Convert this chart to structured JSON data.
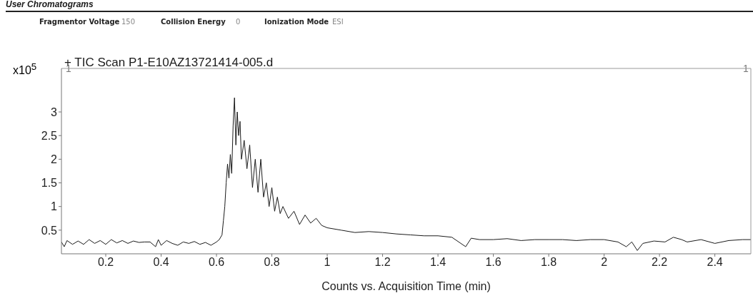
{
  "chart_data": {
    "type": "line",
    "title": "User Chromatograms",
    "xlabel": "Counts vs. Acquisition Time (min)",
    "ylabel": "x10$^{5}$",
    "annotations": [
      "Fragmentor Voltage",
      "150",
      "Collision Energy",
      "0",
      "Ionization Mode",
      "ESI",
      "1",
      "1"
    ],
    "x": [
      0.04,
      0.05,
      0.06,
      0.08,
      0.1,
      0.12,
      0.14,
      0.16,
      0.18,
      0.2,
      0.22,
      0.24,
      0.26,
      0.28,
      0.3,
      0.32,
      0.34,
      0.36,
      0.38,
      0.39,
      0.4,
      0.42,
      0.44,
      0.46,
      0.48,
      0.5,
      0.52,
      0.54,
      0.56,
      0.58,
      0.6,
      0.61,
      0.62,
      0.625,
      0.63,
      0.635,
      0.64,
      0.645,
      0.65,
      0.655,
      0.66,
      0.665,
      0.67,
      0.675,
      0.68,
      0.685,
      0.69,
      0.7,
      0.71,
      0.72,
      0.73,
      0.74,
      0.75,
      0.76,
      0.77,
      0.78,
      0.79,
      0.8,
      0.81,
      0.82,
      0.83,
      0.84,
      0.86,
      0.88,
      0.9,
      0.92,
      0.94,
      0.96,
      0.98,
      1.0,
      1.05,
      1.1,
      1.15,
      1.2,
      1.25,
      1.3,
      1.35,
      1.4,
      1.45,
      1.5,
      1.52,
      1.55,
      1.6,
      1.65,
      1.7,
      1.75,
      1.8,
      1.85,
      1.9,
      1.95,
      2.0,
      2.05,
      2.08,
      2.1,
      2.12,
      2.14,
      2.18,
      2.22,
      2.25,
      2.28,
      2.3,
      2.35,
      2.4,
      2.45,
      2.5,
      2.53
    ],
    "series": [
      {
        "name": "+ TIC Scan P1-E10AZ13721414-005.d",
        "color": "#1a1a1a",
        "values": [
          0.25,
          0.15,
          0.28,
          0.2,
          0.27,
          0.2,
          0.3,
          0.22,
          0.28,
          0.2,
          0.3,
          0.23,
          0.28,
          0.22,
          0.27,
          0.24,
          0.25,
          0.25,
          0.15,
          0.3,
          0.18,
          0.28,
          0.22,
          0.18,
          0.25,
          0.22,
          0.26,
          0.2,
          0.24,
          0.18,
          0.25,
          0.3,
          0.4,
          0.7,
          1.0,
          1.5,
          1.9,
          1.6,
          2.1,
          1.7,
          2.7,
          3.3,
          2.3,
          3.0,
          2.5,
          2.8,
          2.0,
          2.4,
          1.8,
          2.3,
          1.4,
          2.0,
          1.3,
          2.0,
          1.2,
          1.5,
          1.0,
          1.4,
          0.9,
          1.2,
          0.85,
          1.0,
          0.75,
          0.9,
          0.62,
          0.82,
          0.65,
          0.75,
          0.6,
          0.55,
          0.5,
          0.45,
          0.47,
          0.45,
          0.42,
          0.4,
          0.38,
          0.38,
          0.35,
          0.15,
          0.33,
          0.3,
          0.3,
          0.32,
          0.28,
          0.3,
          0.3,
          0.3,
          0.28,
          0.3,
          0.3,
          0.25,
          0.15,
          0.25,
          0.07,
          0.22,
          0.27,
          0.25,
          0.35,
          0.3,
          0.25,
          0.3,
          0.22,
          0.28,
          0.3,
          0.3
        ]
      }
    ],
    "xlim": [
      0.04,
      2.53
    ],
    "xticks": [
      0.2,
      0.4,
      0.6,
      0.8,
      1,
      1.2,
      1.4,
      1.6,
      1.8,
      2,
      2.2,
      2.4
    ],
    "ylim": [
      0,
      3.92
    ],
    "yticks": [
      0.5,
      1,
      1.5,
      2,
      2.5,
      3
    ],
    "grid": false,
    "legend": "top left",
    "marker": "none",
    "line_style": "solid"
  }
}
